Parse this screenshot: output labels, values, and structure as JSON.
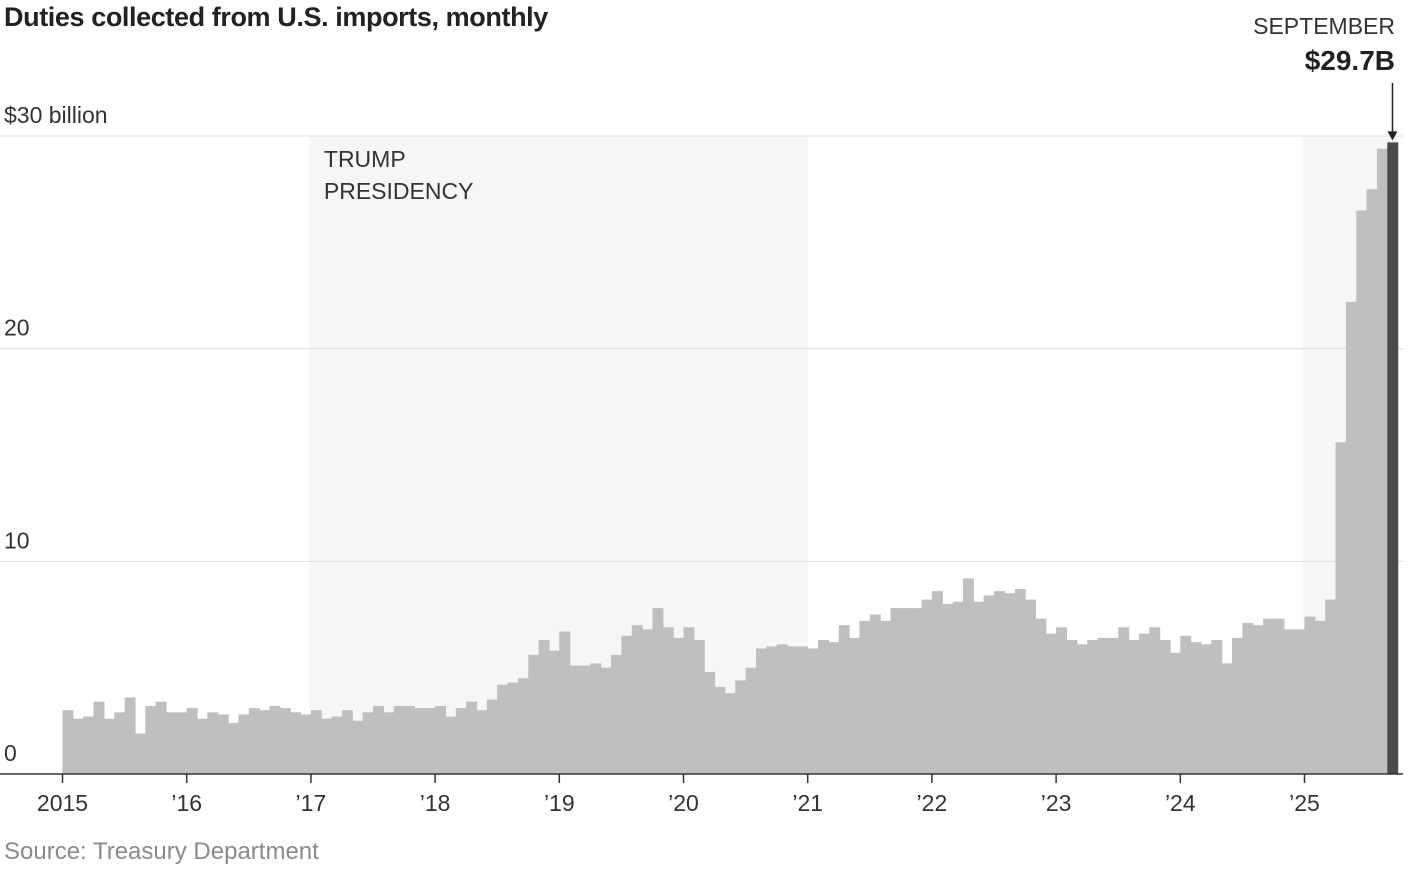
{
  "title": "Duties collected from U.S. imports, monthly",
  "source": "Source: Treasury Department",
  "chart_data": {
    "type": "bar",
    "title": "Duties collected from U.S. imports, monthly",
    "unit": "billion USD",
    "start": "2015-01",
    "ylim": [
      0,
      30
    ],
    "yticks": [
      0,
      10,
      20,
      30
    ],
    "ytick_labels": [
      "0",
      "10",
      "20",
      "$30 billion"
    ],
    "xtick_labels": [
      "2015",
      "’16",
      "’17",
      "’18",
      "’19",
      "’20",
      "’21",
      "’22",
      "’23",
      "’24",
      "’25"
    ],
    "shaded_periods": [
      {
        "label_lines": [
          "TRUMP",
          "PRESIDENCY"
        ],
        "from": "2017-01",
        "to": "2020-12"
      },
      {
        "label_lines": [],
        "from": "2025-01",
        "to": "2025-09"
      }
    ],
    "highlight": {
      "label": "SEPTEMBER",
      "value_label": "$29.7B",
      "date": "2025-09",
      "value": 29.7
    },
    "values": [
      3.0,
      2.6,
      2.7,
      3.4,
      2.6,
      2.9,
      3.6,
      1.9,
      3.2,
      3.4,
      2.9,
      2.9,
      3.1,
      2.6,
      2.9,
      2.8,
      2.4,
      2.8,
      3.1,
      3.0,
      3.2,
      3.1,
      2.9,
      2.8,
      3.0,
      2.6,
      2.7,
      3.0,
      2.5,
      2.9,
      3.2,
      2.9,
      3.2,
      3.2,
      3.1,
      3.1,
      3.2,
      2.7,
      3.1,
      3.4,
      3.0,
      3.5,
      4.2,
      4.3,
      4.5,
      5.6,
      6.3,
      5.8,
      6.7,
      5.1,
      5.1,
      5.2,
      5.0,
      5.6,
      6.5,
      7.0,
      6.8,
      7.8,
      6.9,
      6.4,
      6.9,
      6.3,
      4.8,
      4.1,
      3.8,
      4.4,
      5.0,
      5.9,
      6.0,
      6.1,
      6.0,
      6.0,
      5.9,
      6.3,
      6.2,
      7.0,
      6.4,
      7.2,
      7.5,
      7.2,
      7.8,
      7.8,
      7.8,
      8.2,
      8.6,
      8.0,
      8.1,
      9.2,
      8.1,
      8.4,
      8.6,
      8.5,
      8.7,
      8.2,
      7.3,
      6.6,
      6.9,
      6.3,
      6.1,
      6.3,
      6.4,
      6.4,
      6.9,
      6.3,
      6.6,
      6.9,
      6.3,
      5.7,
      6.5,
      6.2,
      6.1,
      6.3,
      5.2,
      6.4,
      7.1,
      7.0,
      7.3,
      7.3,
      6.8,
      6.8,
      7.4,
      7.2,
      8.2,
      15.6,
      22.2,
      26.5,
      27.5,
      29.4,
      29.7
    ]
  }
}
